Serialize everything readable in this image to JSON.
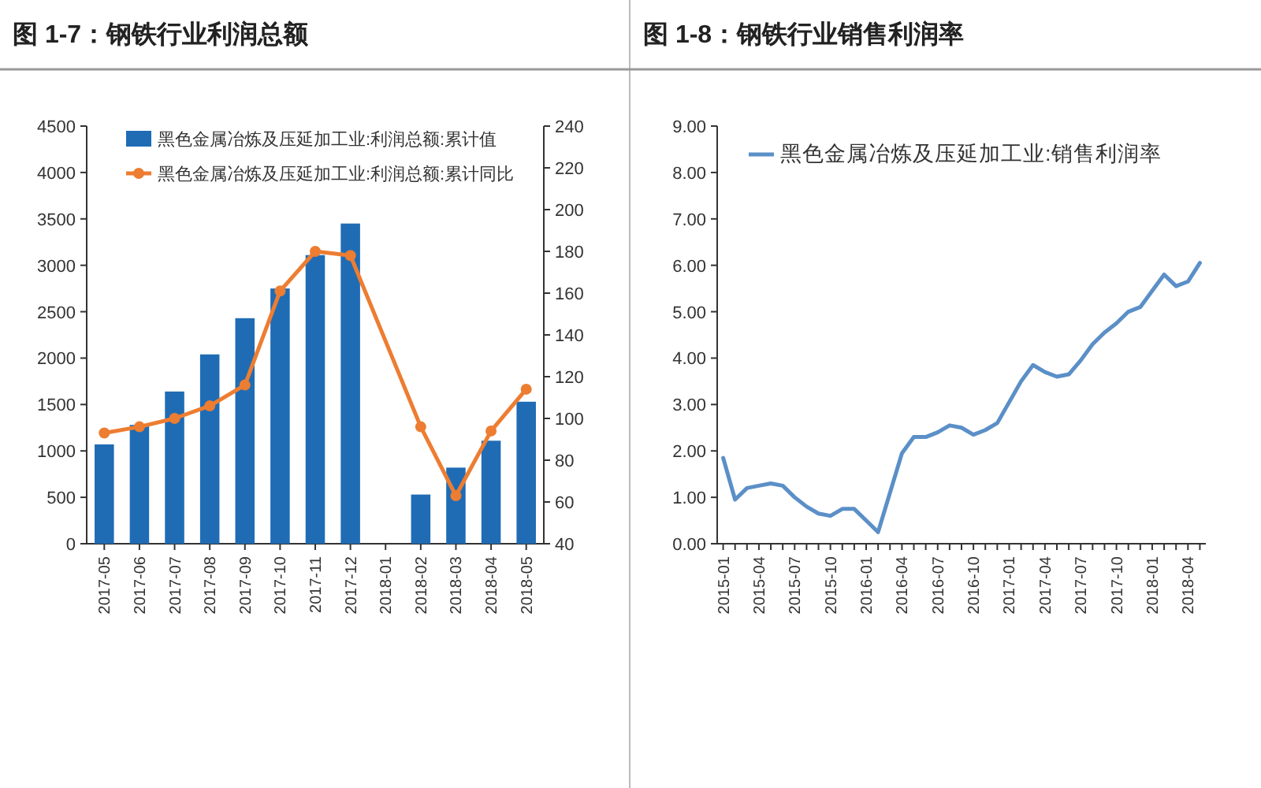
{
  "chart_data": [
    {
      "type": "bar",
      "title": "图 1-7：钢铁行业利润总额",
      "categories": [
        "2017-05",
        "2017-06",
        "2017-07",
        "2017-08",
        "2017-09",
        "2017-10",
        "2017-11",
        "2017-12",
        "2018-01",
        "2018-02",
        "2018-03",
        "2018-04",
        "2018-05"
      ],
      "series": [
        {
          "name": "黑色金属冶炼及压延加工业:利润总额:累计值",
          "color": "#1f6cb5",
          "values": [
            1070,
            1280,
            1640,
            2040,
            2430,
            2750,
            3110,
            3450,
            null,
            530,
            820,
            1110,
            1530
          ]
        },
        {
          "type": "line",
          "axis": "y2",
          "marker": "circle",
          "name": "黑色金属冶炼及压延加工业:利润总额:累计同比",
          "color": "#ed7d31",
          "values": [
            93,
            96,
            100,
            106,
            116,
            161,
            180,
            178,
            null,
            96,
            63,
            94,
            114
          ]
        }
      ],
      "ylim": [
        0,
        4500
      ],
      "yticks": [
        0,
        500,
        1000,
        1500,
        2000,
        2500,
        3000,
        3500,
        4000,
        4500
      ],
      "y2lim": [
        40,
        240
      ],
      "y2ticks": [
        40,
        60,
        80,
        100,
        120,
        140,
        160,
        180,
        200,
        220,
        240
      ],
      "legend": "top"
    },
    {
      "type": "line",
      "title": "图 1-8：钢铁行业销售利润率",
      "categories": [
        "2015-01",
        null,
        null,
        "2015-04",
        null,
        null,
        "2015-07",
        null,
        null,
        "2015-10",
        null,
        null,
        "2016-01",
        null,
        null,
        "2016-04",
        null,
        null,
        "2016-07",
        null,
        null,
        "2016-10",
        null,
        null,
        "2017-01",
        null,
        null,
        "2017-04",
        null,
        null,
        "2017-07",
        null,
        null,
        "2017-10",
        null,
        null,
        "2018-01",
        null,
        null,
        "2018-04",
        null
      ],
      "series": [
        {
          "name": "黑色金属冶炼及压延加工业:销售利润率",
          "color": "#5b8fc7",
          "values": [
            1.85,
            0.95,
            1.2,
            1.25,
            1.3,
            1.25,
            1.0,
            0.8,
            0.65,
            0.6,
            0.75,
            0.75,
            0.5,
            0.25,
            1.1,
            1.95,
            2.3,
            2.3,
            2.4,
            2.55,
            2.5,
            2.35,
            2.45,
            2.6,
            3.05,
            3.5,
            3.85,
            3.7,
            3.6,
            3.65,
            3.95,
            4.3,
            4.55,
            4.75,
            5.0,
            5.1,
            5.45,
            5.8,
            5.55,
            5.65,
            6.05
          ]
        }
      ],
      "ylim": [
        0,
        9
      ],
      "yticks": [
        {
          "value": 0,
          "label": "0.00"
        },
        {
          "value": 1,
          "label": "1.00"
        },
        {
          "value": 2,
          "label": "2.00"
        },
        {
          "value": 3,
          "label": "3.00"
        },
        {
          "value": 4,
          "label": "4.00"
        },
        {
          "value": 5,
          "label": "5.00"
        },
        {
          "value": 6,
          "label": "6.00"
        },
        {
          "value": 7,
          "label": "7.00"
        },
        {
          "value": 8,
          "label": "8.00"
        },
        {
          "value": 9,
          "label": "9.00"
        }
      ],
      "legend": "top left"
    }
  ]
}
